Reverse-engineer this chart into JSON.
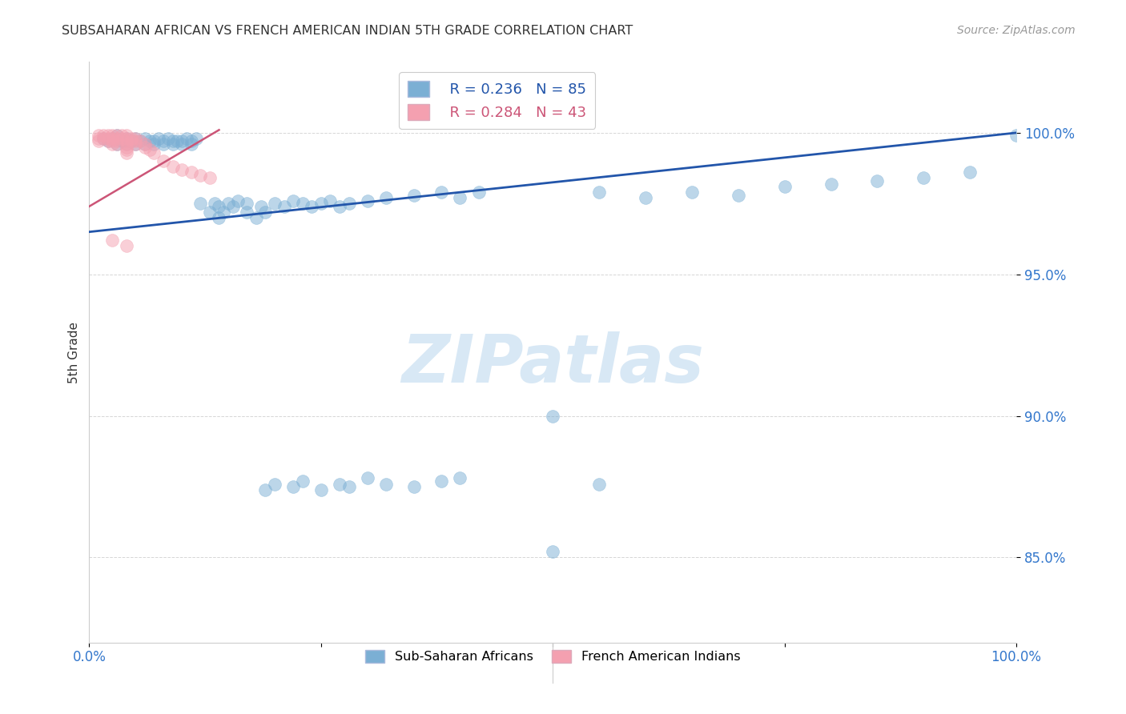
{
  "title": "SUBSAHARAN AFRICAN VS FRENCH AMERICAN INDIAN 5TH GRADE CORRELATION CHART",
  "source": "Source: ZipAtlas.com",
  "ylabel": "5th Grade",
  "xlim": [
    0.0,
    1.0
  ],
  "ylim": [
    0.82,
    1.025
  ],
  "blue_R": 0.236,
  "blue_N": 85,
  "pink_R": 0.284,
  "pink_N": 43,
  "blue_label": "Sub-Saharan Africans",
  "pink_label": "French American Indians",
  "blue_color": "#7BAFD4",
  "pink_color": "#F4A0B0",
  "blue_line_color": "#2255AA",
  "pink_line_color": "#CC5577",
  "background_color": "#FFFFFF",
  "blue_x": [
    0.015,
    0.02,
    0.025,
    0.03,
    0.03,
    0.035,
    0.04,
    0.04,
    0.04,
    0.045,
    0.05,
    0.05,
    0.055,
    0.06,
    0.06,
    0.065,
    0.07,
    0.07,
    0.075,
    0.08,
    0.08,
    0.085,
    0.09,
    0.09,
    0.095,
    0.1,
    0.1,
    0.105,
    0.11,
    0.11,
    0.115,
    0.12,
    0.13,
    0.135,
    0.14,
    0.14,
    0.145,
    0.15,
    0.155,
    0.16,
    0.17,
    0.17,
    0.18,
    0.185,
    0.19,
    0.2,
    0.21,
    0.22,
    0.23,
    0.24,
    0.25,
    0.26,
    0.27,
    0.28,
    0.3,
    0.32,
    0.35,
    0.38,
    0.4,
    0.42,
    0.5,
    0.55,
    0.6,
    0.65,
    0.7,
    0.75,
    0.8,
    0.85,
    0.9,
    0.95,
    1.0,
    0.19,
    0.2,
    0.22,
    0.23,
    0.25,
    0.27,
    0.28,
    0.3,
    0.32,
    0.35,
    0.38,
    0.4,
    0.5,
    0.55
  ],
  "blue_y": [
    0.998,
    0.997,
    0.998,
    0.996,
    0.999,
    0.997,
    0.996,
    0.998,
    0.997,
    0.997,
    0.996,
    0.998,
    0.997,
    0.996,
    0.998,
    0.997,
    0.996,
    0.997,
    0.998,
    0.996,
    0.997,
    0.998,
    0.997,
    0.996,
    0.997,
    0.996,
    0.997,
    0.998,
    0.996,
    0.997,
    0.998,
    0.975,
    0.972,
    0.975,
    0.97,
    0.974,
    0.972,
    0.975,
    0.974,
    0.976,
    0.972,
    0.975,
    0.97,
    0.974,
    0.972,
    0.975,
    0.974,
    0.976,
    0.975,
    0.974,
    0.975,
    0.976,
    0.974,
    0.975,
    0.976,
    0.977,
    0.978,
    0.979,
    0.977,
    0.979,
    0.9,
    0.979,
    0.977,
    0.979,
    0.978,
    0.981,
    0.982,
    0.983,
    0.984,
    0.986,
    0.999,
    0.874,
    0.876,
    0.875,
    0.877,
    0.874,
    0.876,
    0.875,
    0.878,
    0.876,
    0.875,
    0.877,
    0.878,
    0.852,
    0.876
  ],
  "pink_x": [
    0.01,
    0.01,
    0.01,
    0.015,
    0.015,
    0.02,
    0.02,
    0.02,
    0.025,
    0.025,
    0.025,
    0.025,
    0.03,
    0.03,
    0.03,
    0.03,
    0.035,
    0.035,
    0.04,
    0.04,
    0.04,
    0.04,
    0.04,
    0.04,
    0.04,
    0.045,
    0.045,
    0.05,
    0.05,
    0.05,
    0.055,
    0.06,
    0.06,
    0.065,
    0.07,
    0.08,
    0.09,
    0.1,
    0.11,
    0.12,
    0.13,
    0.04,
    0.025
  ],
  "pink_y": [
    0.999,
    0.998,
    0.997,
    0.999,
    0.998,
    0.999,
    0.998,
    0.997,
    0.999,
    0.998,
    0.997,
    0.996,
    0.999,
    0.998,
    0.997,
    0.996,
    0.999,
    0.998,
    0.999,
    0.998,
    0.997,
    0.996,
    0.995,
    0.994,
    0.993,
    0.998,
    0.997,
    0.998,
    0.997,
    0.996,
    0.997,
    0.996,
    0.995,
    0.994,
    0.993,
    0.99,
    0.988,
    0.987,
    0.986,
    0.985,
    0.984,
    0.96,
    0.962
  ],
  "blue_line_x0": 0.0,
  "blue_line_y0": 0.965,
  "blue_line_x1": 1.0,
  "blue_line_y1": 1.0,
  "pink_line_x0": 0.0,
  "pink_line_y0": 0.974,
  "pink_line_x1": 0.14,
  "pink_line_y1": 1.001,
  "yticks": [
    0.85,
    0.9,
    0.95,
    1.0
  ],
  "ytick_labels": [
    "85.0%",
    "90.0%",
    "95.0%",
    "100.0%"
  ],
  "grid_color": "#CCCCCC",
  "grid_style": "--",
  "watermark_text": "ZIPatlas",
  "watermark_color": "#D8E8F5"
}
